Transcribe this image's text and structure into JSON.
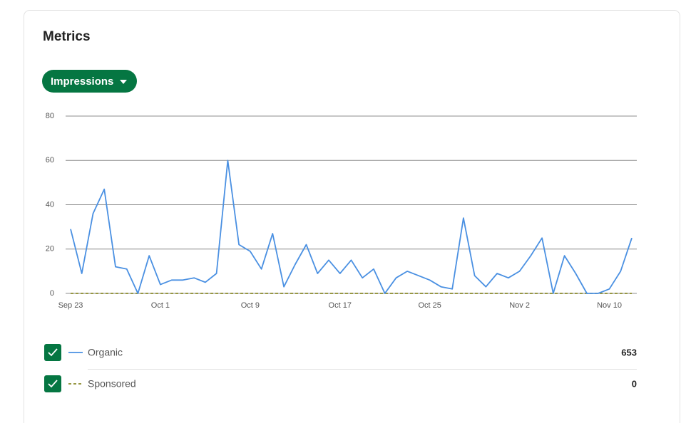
{
  "header": {
    "title": "Metrics",
    "dropdown": "Impressions"
  },
  "chart_data": {
    "type": "line",
    "categories": [
      "Sep 23",
      null,
      null,
      null,
      null,
      null,
      null,
      null,
      "Oct 1",
      null,
      null,
      null,
      null,
      null,
      null,
      null,
      "Oct 9",
      null,
      null,
      null,
      null,
      null,
      null,
      null,
      "Oct 17",
      null,
      null,
      null,
      null,
      null,
      null,
      null,
      "Oct 25",
      null,
      null,
      null,
      null,
      null,
      null,
      null,
      "Nov 2",
      null,
      null,
      null,
      null,
      null,
      null,
      null,
      "Nov 10",
      null,
      null
    ],
    "series": [
      {
        "name": "Organic",
        "color": "#4a90e2",
        "line_style": "solid",
        "total": 653,
        "values": [
          29,
          9,
          36,
          47,
          12,
          11,
          0,
          17,
          4,
          6,
          6,
          7,
          5,
          9,
          60,
          22,
          19,
          11,
          27,
          3,
          13,
          22,
          9,
          15,
          9,
          15,
          7,
          11,
          0,
          7,
          10,
          8,
          6,
          3,
          2,
          34,
          8,
          3,
          9,
          7,
          10,
          17,
          25,
          0,
          17,
          9,
          0,
          0,
          2,
          10,
          25
        ]
      },
      {
        "name": "Sponsored",
        "color": "#8a8a2a",
        "line_style": "dashed",
        "total": 0,
        "values": [
          0,
          0,
          0,
          0,
          0,
          0,
          0,
          0,
          0,
          0,
          0,
          0,
          0,
          0,
          0,
          0,
          0,
          0,
          0,
          0,
          0,
          0,
          0,
          0,
          0,
          0,
          0,
          0,
          0,
          0,
          0,
          0,
          0,
          0,
          0,
          0,
          0,
          0,
          0,
          0,
          0,
          0,
          0,
          0,
          0,
          0,
          0,
          0,
          0,
          0,
          0
        ]
      }
    ],
    "ylim": [
      0,
      80
    ],
    "yticks": [
      0,
      20,
      40,
      60,
      80
    ],
    "grid": true
  }
}
